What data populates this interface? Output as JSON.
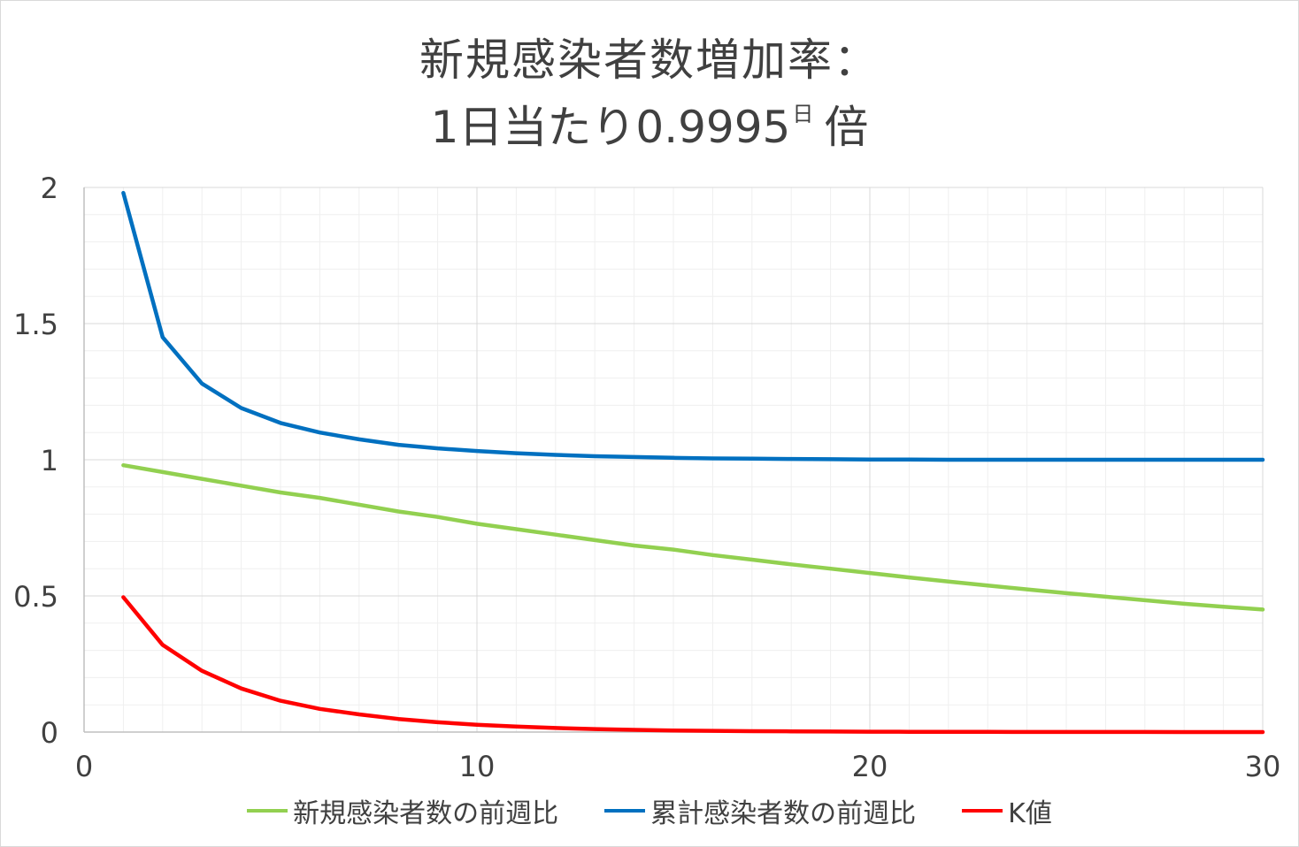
{
  "title": {
    "line1": "新規感染者数増加率：",
    "line2_prefix": "1日当たり0.9995",
    "line2_sup": "日",
    "line2_suffix": "倍"
  },
  "colors": {
    "new_cases": "#92d050",
    "cumulative": "#0070c0",
    "k_value": "#ff0000",
    "grid_major": "#d9d9d9",
    "grid_minor": "#efefef",
    "axis": "#bfbfbf"
  },
  "chart_data": {
    "type": "line",
    "title": "新規感染者数増加率：1日当たり0.9995日倍",
    "xlim": [
      0,
      30
    ],
    "ylim": [
      0,
      2
    ],
    "x_ticks": [
      "0",
      "10",
      "20",
      "30"
    ],
    "y_ticks": [
      "0",
      "0.5",
      "1",
      "1.5",
      "2"
    ],
    "grid": true,
    "legend_position": "bottom",
    "x": [
      1,
      2,
      3,
      4,
      5,
      6,
      7,
      8,
      9,
      10,
      11,
      12,
      13,
      14,
      15,
      16,
      17,
      18,
      19,
      20,
      21,
      22,
      23,
      24,
      25,
      26,
      27,
      28,
      29,
      30
    ],
    "series": [
      {
        "name": "新規感染者数の前週比",
        "color": "#92d050",
        "values": [
          0.98,
          0.955,
          0.93,
          0.905,
          0.88,
          0.86,
          0.835,
          0.81,
          0.79,
          0.765,
          0.745,
          0.725,
          0.705,
          0.685,
          0.67,
          0.65,
          0.633,
          0.616,
          0.6,
          0.584,
          0.568,
          0.553,
          0.538,
          0.524,
          0.51,
          0.497,
          0.484,
          0.471,
          0.46,
          0.45
        ]
      },
      {
        "name": "累計感染者数の前週比",
        "color": "#0070c0",
        "values": [
          1.98,
          1.45,
          1.28,
          1.19,
          1.135,
          1.1,
          1.075,
          1.055,
          1.042,
          1.032,
          1.024,
          1.018,
          1.013,
          1.01,
          1.007,
          1.005,
          1.004,
          1.003,
          1.002,
          1.001,
          1.001,
          1.0,
          1.0,
          1.0,
          1.0,
          1.0,
          1.0,
          1.0,
          1.0,
          1.0
        ]
      },
      {
        "name": "K値",
        "color": "#ff0000",
        "values": [
          0.495,
          0.32,
          0.225,
          0.16,
          0.115,
          0.085,
          0.065,
          0.048,
          0.036,
          0.027,
          0.02,
          0.015,
          0.011,
          0.008,
          0.006,
          0.0045,
          0.0034,
          0.0025,
          0.0018,
          0.0013,
          0.001,
          0.0007,
          0.0005,
          0.0004,
          0.0003,
          0.0002,
          0.0002,
          0.0001,
          0.0001,
          0.0001
        ]
      }
    ]
  }
}
